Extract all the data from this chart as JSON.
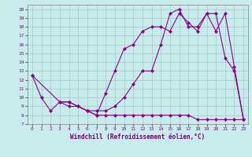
{
  "title": "",
  "xlabel": "Windchill (Refroidissement éolien,°C)",
  "bg_color": "#c8ecec",
  "grid_color": "#a0c8c8",
  "line_color": "#8b008b",
  "xlim": [
    -0.5,
    23.5
  ],
  "ylim": [
    7,
    20.5
  ],
  "xticks": [
    0,
    1,
    2,
    3,
    4,
    5,
    6,
    7,
    8,
    9,
    10,
    11,
    12,
    13,
    14,
    15,
    16,
    17,
    18,
    19,
    20,
    21,
    22,
    23
  ],
  "yticks": [
    7,
    8,
    9,
    10,
    11,
    12,
    13,
    14,
    15,
    16,
    17,
    18,
    19,
    20
  ],
  "line1_x": [
    0,
    1,
    2,
    3,
    4,
    5,
    6,
    7,
    8,
    9,
    10,
    11,
    12,
    13,
    14,
    15,
    16,
    17,
    18,
    19,
    20,
    21,
    22,
    23
  ],
  "line1_y": [
    12.5,
    10,
    8.5,
    9.5,
    9,
    9,
    8.5,
    8,
    8,
    8,
    8,
    8,
    8,
    8,
    8,
    8,
    8,
    8,
    7.5,
    7.5,
    7.5,
    7.5,
    7.5,
    7.5
  ],
  "line2_x": [
    0,
    3,
    4,
    5,
    6,
    7,
    8,
    9,
    10,
    11,
    12,
    13,
    14,
    15,
    16,
    17,
    18,
    19,
    20,
    21,
    22,
    23
  ],
  "line2_y": [
    12.5,
    9.5,
    9.5,
    9,
    8.5,
    8,
    10.5,
    13,
    15.5,
    16,
    17.5,
    18,
    18,
    17.5,
    19.5,
    18.5,
    17.5,
    19.5,
    19.5,
    14.5,
    13,
    7.5
  ],
  "line3_x": [
    3,
    4,
    5,
    6,
    7,
    8,
    9,
    10,
    11,
    12,
    13,
    14,
    15,
    16,
    17,
    18,
    19,
    20,
    21,
    22,
    23
  ],
  "line3_y": [
    9.5,
    9.5,
    9,
    8.5,
    8.5,
    8.5,
    9,
    10,
    11.5,
    13,
    13,
    16,
    19.5,
    20,
    18,
    18,
    19.5,
    17.5,
    19.5,
    13.5,
    7.5
  ]
}
